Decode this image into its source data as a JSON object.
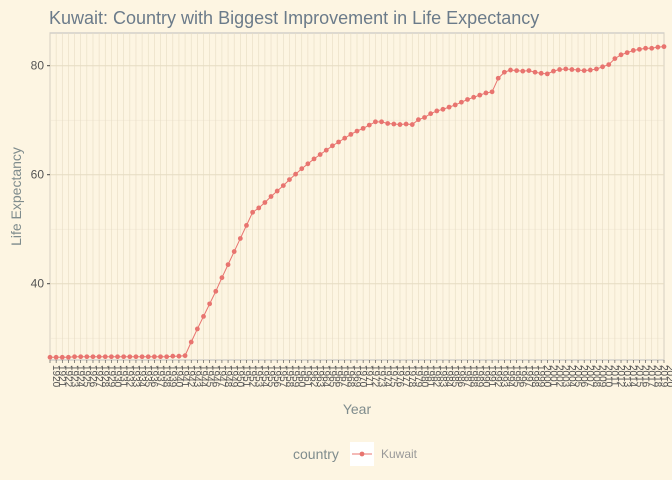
{
  "chart_data": {
    "type": "line",
    "title": "Kuwait: Country with Biggest Improvement in Life Expectancy",
    "xlabel": "Year",
    "ylabel": "Life Expectancy",
    "x_range": [
      1920,
      2020
    ],
    "ylim": [
      26,
      86
    ],
    "yticks": [
      40,
      60,
      80
    ],
    "grid": true,
    "legend": {
      "title": "country",
      "placement": "bottom"
    },
    "series": [
      {
        "name": "Kuwait",
        "color": "#e8746f",
        "x": [
          1920,
          1921,
          1922,
          1923,
          1924,
          1925,
          1926,
          1927,
          1928,
          1929,
          1930,
          1931,
          1932,
          1933,
          1934,
          1935,
          1936,
          1937,
          1938,
          1939,
          1940,
          1941,
          1942,
          1943,
          1944,
          1945,
          1946,
          1947,
          1948,
          1949,
          1950,
          1951,
          1952,
          1953,
          1954,
          1955,
          1956,
          1957,
          1958,
          1959,
          1960,
          1961,
          1962,
          1963,
          1964,
          1965,
          1966,
          1967,
          1968,
          1969,
          1970,
          1971,
          1972,
          1973,
          1974,
          1975,
          1976,
          1977,
          1978,
          1979,
          1980,
          1981,
          1982,
          1983,
          1984,
          1985,
          1986,
          1987,
          1988,
          1989,
          1990,
          1991,
          1992,
          1993,
          1994,
          1995,
          1996,
          1997,
          1998,
          1999,
          2000,
          2001,
          2002,
          2003,
          2004,
          2005,
          2006,
          2007,
          2008,
          2009,
          2010,
          2011,
          2012,
          2013,
          2014,
          2015,
          2016,
          2017,
          2018,
          2019,
          2020
        ],
        "values": [
          26.5,
          26.5,
          26.5,
          26.5,
          26.6,
          26.6,
          26.6,
          26.6,
          26.6,
          26.6,
          26.6,
          26.6,
          26.6,
          26.6,
          26.6,
          26.6,
          26.6,
          26.6,
          26.6,
          26.6,
          26.7,
          26.7,
          26.8,
          29.3,
          31.7,
          34.0,
          36.3,
          38.6,
          41.1,
          43.5,
          45.9,
          48.3,
          50.7,
          53.1,
          53.9,
          54.9,
          56.0,
          57.0,
          58.0,
          59.1,
          60.1,
          61.1,
          62.0,
          62.9,
          63.7,
          64.5,
          65.3,
          66.0,
          66.7,
          67.4,
          68.0,
          68.5,
          69.1,
          69.7,
          69.7,
          69.4,
          69.3,
          69.2,
          69.3,
          69.2,
          70.1,
          70.5,
          71.2,
          71.7,
          72.0,
          72.4,
          72.8,
          73.3,
          73.8,
          74.2,
          74.6,
          75.0,
          75.2,
          77.7,
          78.8,
          79.2,
          79.1,
          79.0,
          79.1,
          78.8,
          78.6,
          78.5,
          79.0,
          79.3,
          79.4,
          79.3,
          79.2,
          79.1,
          79.2,
          79.4,
          79.8,
          80.2,
          81.3,
          82.0,
          82.4,
          82.8,
          83.0,
          83.2,
          83.2,
          83.4,
          83.5
        ]
      }
    ]
  }
}
